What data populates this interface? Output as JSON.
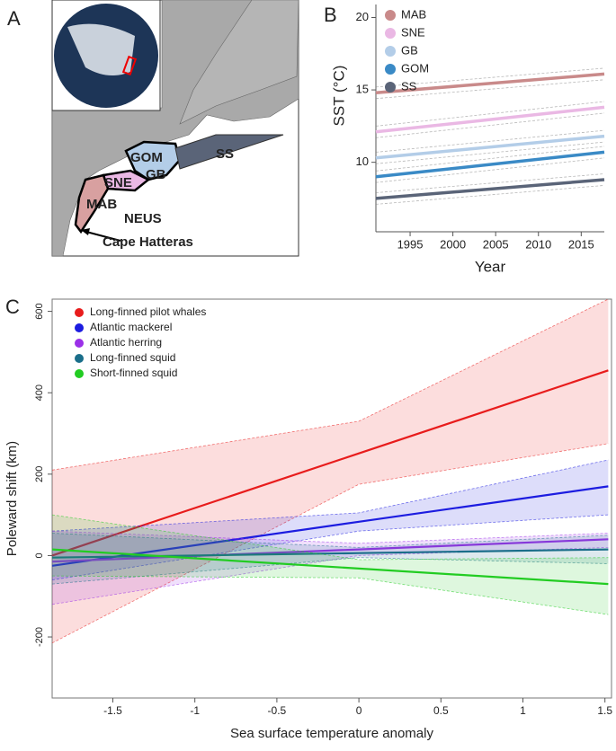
{
  "map": {
    "panel_label": "A",
    "regions": [
      "MAB",
      "SNE",
      "GOM",
      "GB",
      "SS"
    ],
    "area_label": "NEUS",
    "place_label": "Cape Hatteras"
  },
  "chart_data": [
    {
      "type": "line",
      "panel_label": "B",
      "xlabel": "Year",
      "ylabel": "SST (°C)",
      "x": [
        1991,
        2017.7
      ],
      "xlim": [
        1991,
        2017.7
      ],
      "ylim": [
        5.2,
        20.9
      ],
      "xticks": [
        1995,
        2000,
        2005,
        2010,
        2015
      ],
      "yticks": [
        10,
        15,
        20
      ],
      "legend": "top-left",
      "band_fill": false,
      "box": false,
      "series": [
        {
          "name": "MAB",
          "color": "#c98a8a",
          "values": [
            14.8,
            16.1
          ],
          "lower": [
            14.4,
            15.7
          ],
          "upper": [
            15.2,
            16.5
          ]
        },
        {
          "name": "SNE",
          "color": "#eab8e4",
          "values": [
            12.1,
            13.8
          ],
          "lower": [
            11.7,
            13.4
          ],
          "upper": [
            12.5,
            14.2
          ]
        },
        {
          "name": "GB",
          "color": "#b3cde8",
          "values": [
            10.3,
            11.8
          ],
          "lower": [
            9.9,
            11.4
          ],
          "upper": [
            10.7,
            12.2
          ]
        },
        {
          "name": "GOM",
          "color": "#3a8ac6",
          "values": [
            9.0,
            10.7
          ],
          "lower": [
            8.6,
            10.3
          ],
          "upper": [
            9.4,
            11.1
          ]
        },
        {
          "name": "SS",
          "color": "#5a6478",
          "values": [
            7.5,
            8.8
          ],
          "lower": [
            7.1,
            8.4
          ],
          "upper": [
            7.9,
            9.2
          ]
        }
      ]
    },
    {
      "type": "line",
      "panel_label": "C",
      "xlabel": "Sea surface temperature anomaly",
      "ylabel": "Poleward shift (km)",
      "x": [
        -1.87,
        0,
        1.52
      ],
      "xlim": [
        -1.87,
        1.54
      ],
      "ylim": [
        -350,
        630
      ],
      "xticks": [
        -1.5,
        -1.0,
        -0.5,
        0.0,
        0.5,
        1.0,
        1.5
      ],
      "yticks": [
        -200,
        0,
        200,
        400,
        600
      ],
      "legend": "top-left",
      "band_fill": true,
      "box": true,
      "series": [
        {
          "name": "Long-finned pilot whales",
          "color": "#e81c1c",
          "values": [
            0,
            251,
            455
          ],
          "lower": [
            -215,
            175,
            275
          ],
          "upper": [
            210,
            330,
            630
          ]
        },
        {
          "name": "Atlantic mackerel",
          "color": "#1c1ce0",
          "values": [
            -25,
            83,
            170
          ],
          "lower": [
            -60,
            60,
            100
          ],
          "upper": [
            60,
            105,
            235
          ]
        },
        {
          "name": "Atlantic herring",
          "color": "#9b30e8",
          "values": [
            -15,
            15,
            40
          ],
          "lower": [
            -120,
            0,
            20
          ],
          "upper": [
            60,
            30,
            55
          ]
        },
        {
          "name": "Long-finned squid",
          "color": "#1a6e8a",
          "values": [
            -5,
            6,
            15
          ],
          "lower": [
            -70,
            -5,
            -20
          ],
          "upper": [
            55,
            20,
            50
          ]
        },
        {
          "name": "Short-finned squid",
          "color": "#22cc22",
          "values": [
            15,
            -32,
            -70
          ],
          "lower": [
            -50,
            -55,
            -145
          ],
          "upper": [
            100,
            -10,
            -5
          ]
        }
      ]
    }
  ]
}
